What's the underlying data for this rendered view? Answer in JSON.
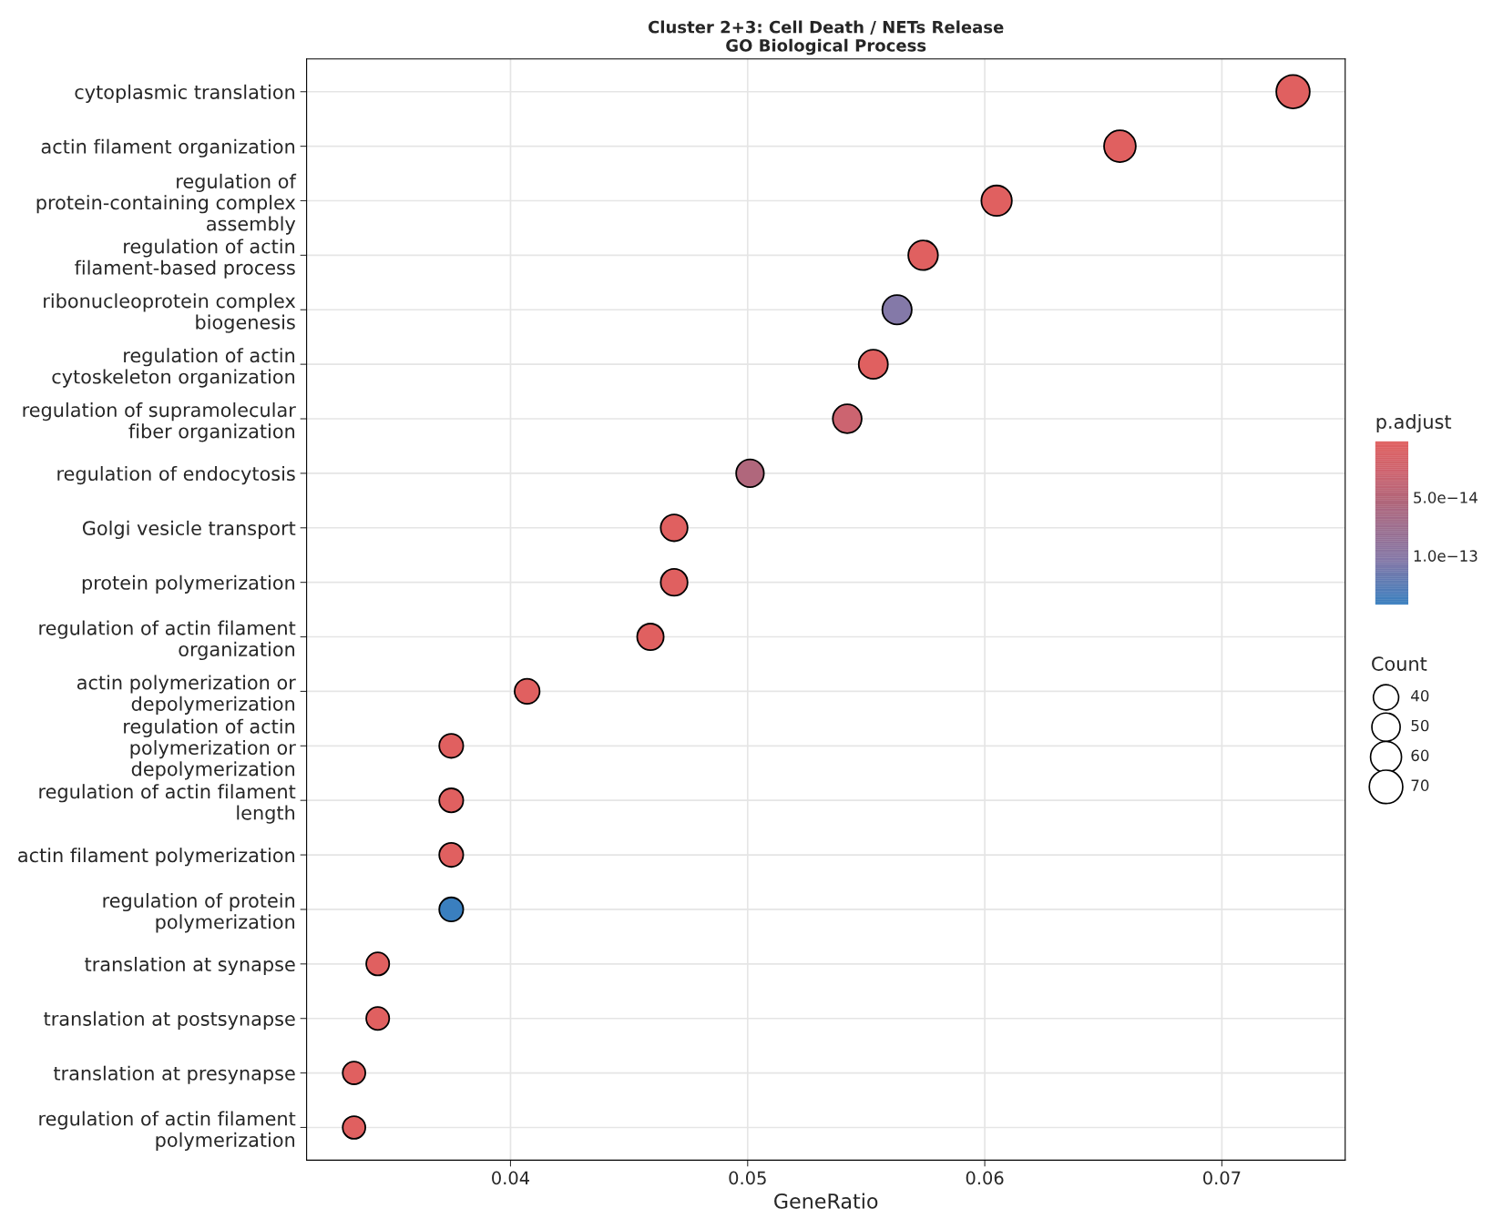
{
  "chart_data": {
    "type": "bubble",
    "orientation": "horizontal",
    "title": "Cluster 2+3: Cell Death / NETs Release\nGO Biological Process",
    "xlabel": "GeneRatio",
    "categories": [
      "cytoplasmic translation",
      "actin filament organization",
      "regulation of\nprotein-containing complex\nassembly",
      "regulation of actin\nfilament-based process",
      "ribonucleoprotein complex\nbiogenesis",
      "regulation of actin\ncytoskeleton organization",
      "regulation of supramolecular\nfiber organization",
      "regulation of endocytosis",
      "Golgi vesicle transport",
      "protein polymerization",
      "regulation of actin filament\norganization",
      "actin polymerization or\ndepolymerization",
      "regulation of actin\npolymerization or\ndepolymerization",
      "regulation of actin filament\nlength",
      "actin filament polymerization",
      "regulation of protein\npolymerization",
      "translation at synapse",
      "translation at postsynapse",
      "translation at presynapse",
      "regulation of actin filament\npolymerization"
    ],
    "values": [
      0.073,
      0.0657,
      0.0605,
      0.0574,
      0.0563,
      0.0553,
      0.0542,
      0.0501,
      0.0469,
      0.0469,
      0.0459,
      0.0407,
      0.0375,
      0.0375,
      0.0375,
      0.0375,
      0.0344,
      0.0344,
      0.0334,
      0.0334
    ],
    "sizes": [
      70,
      63,
      58,
      55,
      54,
      53,
      52,
      48,
      45,
      45,
      44,
      39,
      36,
      36,
      36,
      36,
      33,
      33,
      32,
      32
    ],
    "size_legend": [
      40,
      50,
      60,
      70
    ],
    "legend_title": "Count",
    "cvalues": [
      2e-15,
      2e-15,
      2e-15,
      2e-15,
      1.05e-13,
      2e-15,
      3e-14,
      5.5e-14,
      2e-15,
      2e-15,
      2e-15,
      2e-15,
      2e-15,
      2e-15,
      2e-15,
      1.42e-13,
      2e-15,
      2e-15,
      2e-15,
      2e-15
    ],
    "colors": [
      "#e06060",
      "#e06060",
      "#e06060",
      "#e06060",
      "#8479a8",
      "#e06060",
      "#cc6470",
      "#b0677c",
      "#e06060",
      "#e06060",
      "#e06060",
      "#e06060",
      "#e06060",
      "#e06060",
      "#e06060",
      "#3a7fbf",
      "#e06060",
      "#e06060",
      "#e06060",
      "#e06060"
    ],
    "clabel": "p.adjust",
    "clim": [
      1.42e-13,
      2e-15
    ],
    "cticks": [
      {
        "value": 5e-14,
        "label": "5.0e−14"
      },
      {
        "value": 1e-13,
        "label": "1.0e−13"
      }
    ],
    "xlim": [
      0.0314,
      0.0752
    ],
    "xticks": [
      0.04,
      0.05,
      0.06,
      0.07
    ],
    "grid": true
  }
}
